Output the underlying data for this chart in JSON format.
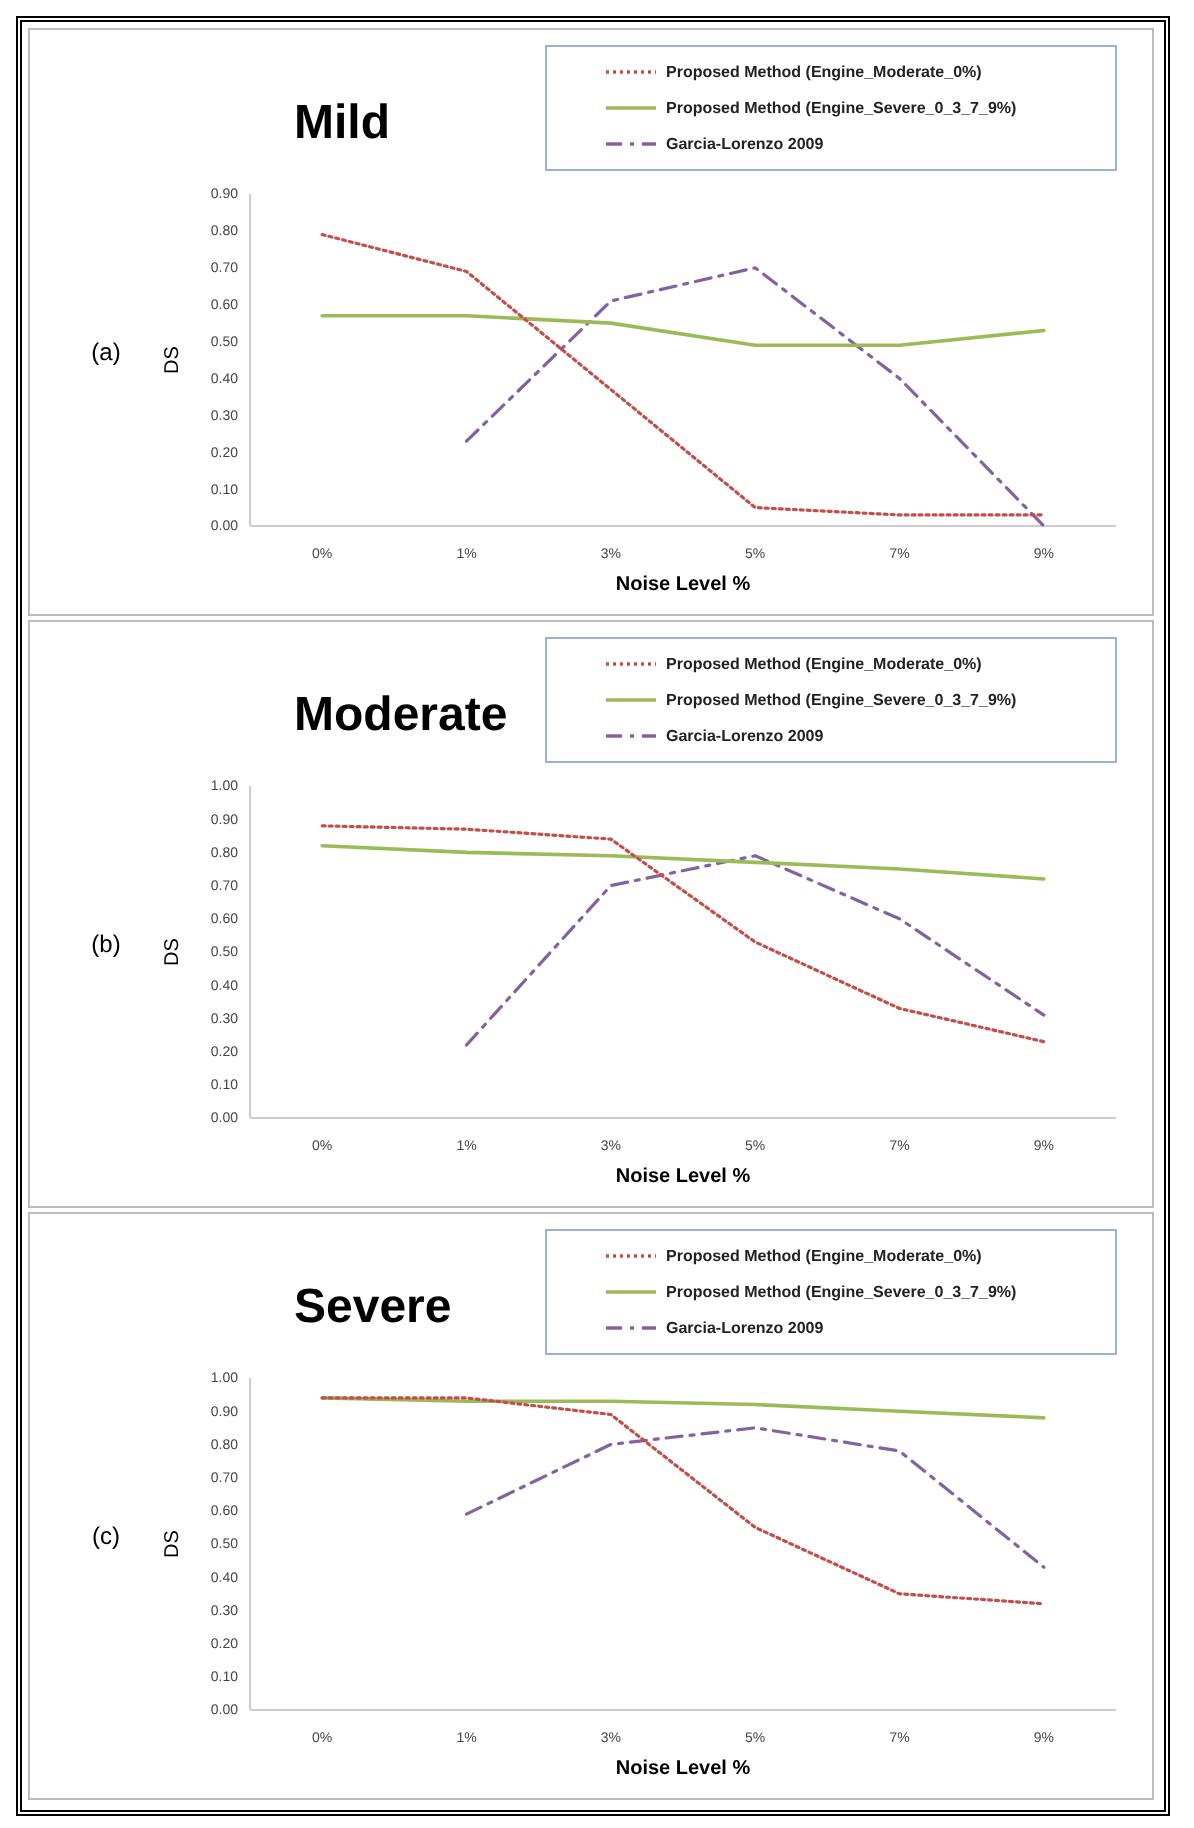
{
  "chart_data": [
    {
      "type": "line",
      "title": "Mild",
      "xlabel": "Noise Level %",
      "ylabel": "DS",
      "annotations": [
        "(a)"
      ],
      "categories": [
        "0%",
        "1%",
        "3%",
        "5%",
        "7%",
        "9%"
      ],
      "ylim": [
        0,
        0.9
      ],
      "yticks": [
        {
          "value": 0,
          "label": "0.00"
        },
        {
          "value": 0.1,
          "label": "0.10"
        },
        {
          "value": 0.2,
          "label": "0.20"
        },
        {
          "value": 0.3,
          "label": "0.30"
        },
        {
          "value": 0.4,
          "label": "0.40"
        },
        {
          "value": 0.5,
          "label": "0.50"
        },
        {
          "value": 0.6,
          "label": "0.60"
        },
        {
          "value": 0.7,
          "label": "0.70"
        },
        {
          "value": 0.8,
          "label": "0.80"
        },
        {
          "value": 0.9,
          "label": "0.90"
        }
      ],
      "legend": "top right",
      "series": [
        {
          "name": "Proposed Method (Engine_Moderate_0%)",
          "color": "#c0504d",
          "line_style": "dotted",
          "values": [
            0.79,
            0.69,
            0.37,
            0.05,
            0.03,
            0.03
          ]
        },
        {
          "name": "Proposed Method (Engine_Severe_0_3_7_9%)",
          "color": "#9bbb59",
          "line_style": "solid",
          "values": [
            0.57,
            0.57,
            0.55,
            0.49,
            0.49,
            0.53
          ]
        },
        {
          "name": "Garcia-Lorenzo 2009",
          "color": "#8064a2",
          "line_style": "dashed",
          "values": [
            null,
            0.23,
            0.61,
            0.7,
            0.4,
            0.0
          ]
        }
      ]
    },
    {
      "type": "line",
      "title": "Moderate",
      "xlabel": "Noise Level %",
      "ylabel": "DS",
      "annotations": [
        "(b)"
      ],
      "categories": [
        "0%",
        "1%",
        "3%",
        "5%",
        "7%",
        "9%"
      ],
      "ylim": [
        0,
        1
      ],
      "yticks": [
        {
          "value": 0,
          "label": "0.00"
        },
        {
          "value": 0.1,
          "label": "0.10"
        },
        {
          "value": 0.2,
          "label": "0.20"
        },
        {
          "value": 0.3,
          "label": "0.30"
        },
        {
          "value": 0.4,
          "label": "0.40"
        },
        {
          "value": 0.5,
          "label": "0.50"
        },
        {
          "value": 0.6,
          "label": "0.60"
        },
        {
          "value": 0.7,
          "label": "0.70"
        },
        {
          "value": 0.8,
          "label": "0.80"
        },
        {
          "value": 0.9,
          "label": "0.90"
        },
        {
          "value": 1,
          "label": "1.00"
        }
      ],
      "legend": "top right",
      "series": [
        {
          "name": "Proposed Method (Engine_Moderate_0%)",
          "color": "#c0504d",
          "line_style": "dotted",
          "values": [
            0.88,
            0.87,
            0.84,
            0.53,
            0.33,
            0.23
          ]
        },
        {
          "name": "Proposed Method (Engine_Severe_0_3_7_9%)",
          "color": "#9bbb59",
          "line_style": "solid",
          "values": [
            0.82,
            0.8,
            0.79,
            0.77,
            0.75,
            0.72
          ]
        },
        {
          "name": "Garcia-Lorenzo 2009",
          "color": "#8064a2",
          "line_style": "dashed",
          "values": [
            null,
            0.22,
            0.7,
            0.79,
            0.6,
            0.31
          ]
        }
      ]
    },
    {
      "type": "line",
      "title": "Severe",
      "xlabel": "Noise Level %",
      "ylabel": "DS",
      "annotations": [
        "(c)"
      ],
      "categories": [
        "0%",
        "1%",
        "3%",
        "5%",
        "7%",
        "9%"
      ],
      "ylim": [
        0,
        1
      ],
      "yticks": [
        {
          "value": 0,
          "label": "0.00"
        },
        {
          "value": 0.1,
          "label": "0.10"
        },
        {
          "value": 0.2,
          "label": "0.20"
        },
        {
          "value": 0.3,
          "label": "0.30"
        },
        {
          "value": 0.4,
          "label": "0.40"
        },
        {
          "value": 0.5,
          "label": "0.50"
        },
        {
          "value": 0.6,
          "label": "0.60"
        },
        {
          "value": 0.7,
          "label": "0.70"
        },
        {
          "value": 0.8,
          "label": "0.80"
        },
        {
          "value": 0.9,
          "label": "0.90"
        },
        {
          "value": 1,
          "label": "1.00"
        }
      ],
      "legend": "top right",
      "series": [
        {
          "name": "Proposed Method (Engine_Moderate_0%)",
          "color": "#c0504d",
          "line_style": "dotted",
          "values": [
            0.94,
            0.94,
            0.89,
            0.55,
            0.35,
            0.32
          ]
        },
        {
          "name": "Proposed Method (Engine_Severe_0_3_7_9%)",
          "color": "#9bbb59",
          "line_style": "solid",
          "values": [
            0.94,
            0.93,
            0.93,
            0.92,
            0.9,
            0.88
          ]
        },
        {
          "name": "Garcia-Lorenzo 2009",
          "color": "#8064a2",
          "line_style": "dashed",
          "values": [
            null,
            0.59,
            0.8,
            0.85,
            0.78,
            0.43
          ]
        }
      ]
    }
  ]
}
